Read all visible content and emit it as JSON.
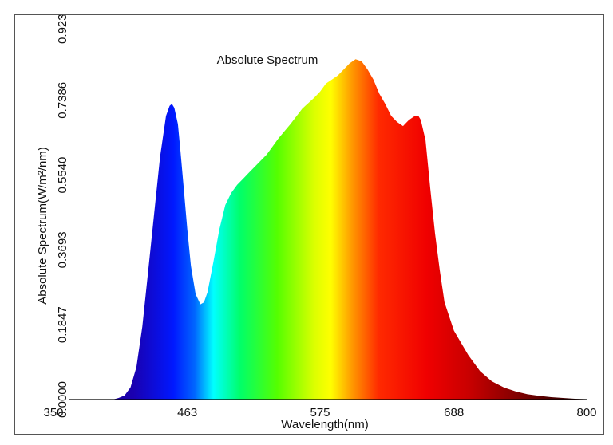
{
  "chart_data": {
    "type": "area",
    "title": "Absolute Spectrum",
    "xlabel": "Wavelength(nm)",
    "ylabel": "Absolute Spectrum(W/m²/nm)",
    "xlim": [
      350,
      800
    ],
    "ylim": [
      0,
      0.9233
    ],
    "xticks": [
      "350",
      "463",
      "575",
      "688",
      "800"
    ],
    "yticks": [
      "0.0000",
      "0.1847",
      "0.3693",
      "0.5540",
      "0.7386",
      "0.9233"
    ],
    "grid": false,
    "legend": "none",
    "fill": "wavelength-colored spectrum",
    "x": [
      350,
      400,
      405,
      410,
      415,
      420,
      425,
      430,
      435,
      440,
      445,
      448,
      450,
      452,
      455,
      457,
      460,
      463,
      466,
      470,
      474,
      477,
      480,
      485,
      490,
      495,
      500,
      505,
      510,
      515,
      520,
      530,
      540,
      550,
      560,
      570,
      575,
      580,
      585,
      590,
      595,
      600,
      605,
      610,
      615,
      620,
      625,
      630,
      635,
      640,
      645,
      650,
      655,
      658,
      660,
      664,
      668,
      672,
      676,
      680,
      688,
      700,
      710,
      720,
      730,
      740,
      750,
      760,
      770,
      780,
      790,
      800
    ],
    "y": [
      0.0,
      0.0,
      0.004,
      0.01,
      0.03,
      0.08,
      0.18,
      0.32,
      0.46,
      0.6,
      0.7,
      0.725,
      0.73,
      0.72,
      0.68,
      0.62,
      0.52,
      0.42,
      0.33,
      0.26,
      0.235,
      0.24,
      0.265,
      0.34,
      0.42,
      0.48,
      0.51,
      0.53,
      0.545,
      0.56,
      0.575,
      0.605,
      0.645,
      0.68,
      0.718,
      0.745,
      0.76,
      0.78,
      0.79,
      0.8,
      0.815,
      0.83,
      0.84,
      0.835,
      0.815,
      0.79,
      0.755,
      0.73,
      0.7,
      0.685,
      0.675,
      0.69,
      0.7,
      0.7,
      0.69,
      0.64,
      0.52,
      0.41,
      0.32,
      0.24,
      0.17,
      0.11,
      0.07,
      0.045,
      0.03,
      0.02,
      0.013,
      0.009,
      0.006,
      0.004,
      0.002,
      0.001
    ]
  }
}
